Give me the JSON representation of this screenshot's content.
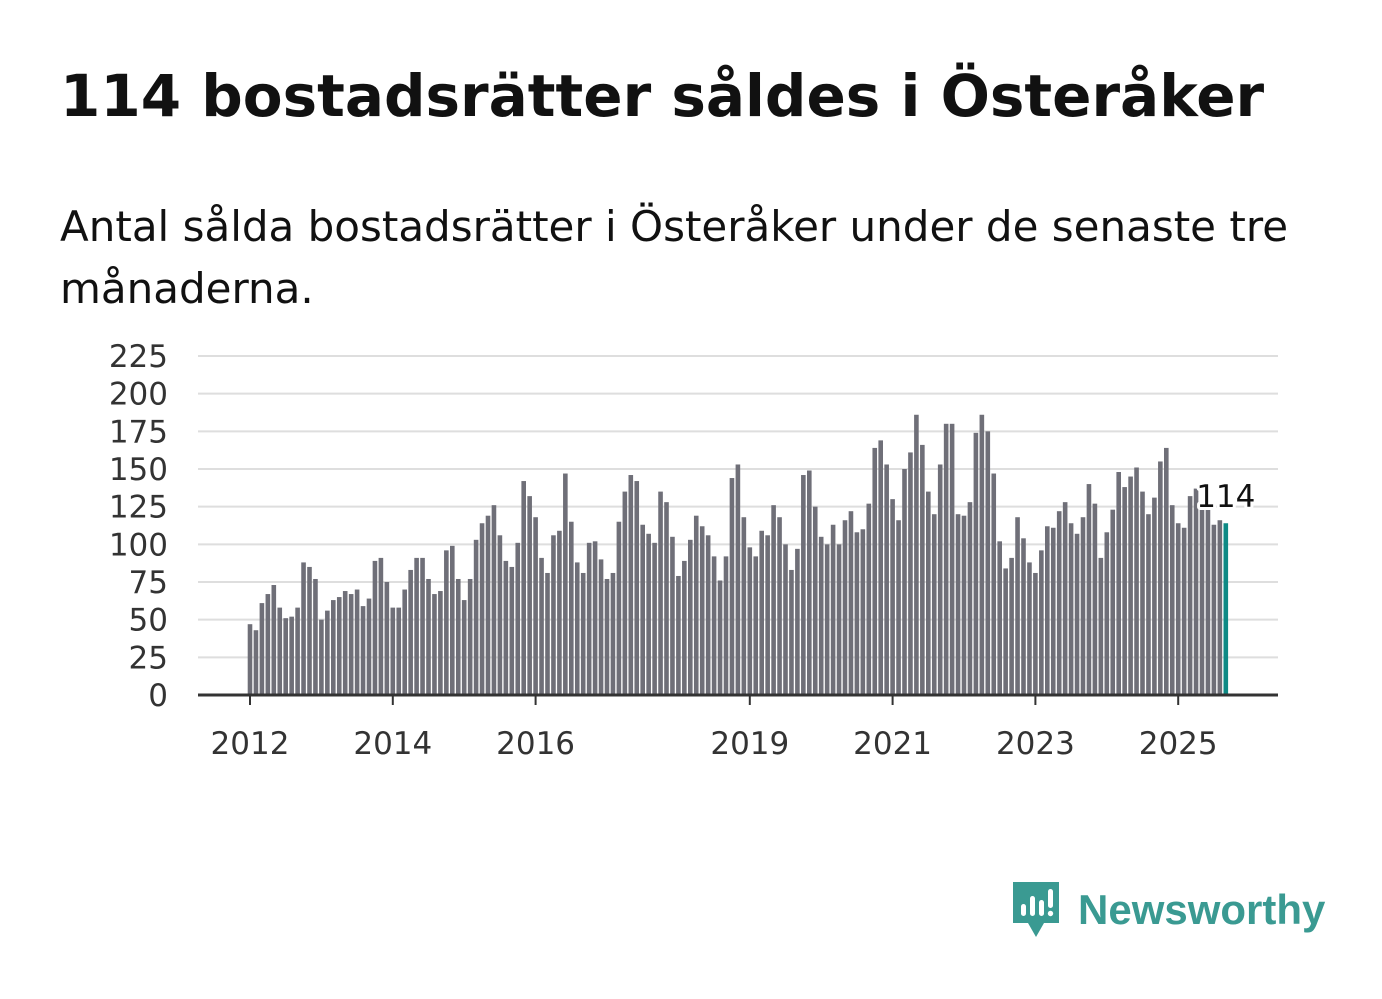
{
  "title": "114 bostadsrätter såldes i Österåker",
  "subtitle": "Antal sålda bostadsrätter i Österåker under de senaste tre månaderna.",
  "brand": {
    "name": "Newsworthy",
    "icon": "newsworthy-logo-icon",
    "color": "#3a9a92"
  },
  "colors": {
    "bar": "#6f6f78",
    "highlight": "#0e8a85",
    "grid": "#dedede"
  },
  "chart_data": {
    "type": "bar",
    "title": "",
    "xlabel": "",
    "ylabel": "",
    "ylim": [
      0,
      225
    ],
    "yticks": [
      0,
      25,
      50,
      75,
      100,
      125,
      150,
      175,
      200,
      225
    ],
    "start": "2012-01",
    "xticks": [
      {
        "label": "2012",
        "index": 0
      },
      {
        "label": "2014",
        "index": 24
      },
      {
        "label": "2016",
        "index": 48
      },
      {
        "label": "2019",
        "index": 84
      },
      {
        "label": "2021",
        "index": 108
      },
      {
        "label": "2023",
        "index": 132
      },
      {
        "label": "2025",
        "index": 156
      }
    ],
    "highlight_label": "114",
    "values": [
      47,
      43,
      61,
      67,
      73,
      58,
      51,
      52,
      58,
      88,
      85,
      77,
      50,
      56,
      63,
      65,
      69,
      67,
      70,
      59,
      64,
      89,
      91,
      75,
      58,
      58,
      70,
      83,
      91,
      91,
      77,
      67,
      69,
      96,
      99,
      77,
      63,
      77,
      103,
      114,
      119,
      126,
      106,
      89,
      85,
      101,
      142,
      132,
      118,
      91,
      81,
      106,
      109,
      147,
      115,
      88,
      81,
      101,
      102,
      90,
      77,
      81,
      115,
      135,
      146,
      142,
      113,
      107,
      101,
      135,
      128,
      105,
      79,
      89,
      103,
      119,
      112,
      106,
      92,
      76,
      92,
      144,
      153,
      118,
      98,
      92,
      109,
      106,
      126,
      118,
      100,
      83,
      97,
      146,
      149,
      125,
      105,
      100,
      113,
      100,
      116,
      122,
      108,
      110,
      127,
      164,
      169,
      153,
      130,
      116,
      150,
      161,
      186,
      166,
      135,
      120,
      153,
      180,
      180,
      120,
      119,
      128,
      174,
      186,
      175,
      147,
      102,
      84,
      91,
      118,
      104,
      88,
      81,
      96,
      112,
      111,
      122,
      128,
      114,
      107,
      118,
      140,
      127,
      91,
      108,
      123,
      148,
      138,
      145,
      151,
      135,
      120,
      131,
      155,
      164,
      126,
      114,
      111,
      132,
      137,
      126,
      127,
      113,
      116,
      114
    ]
  }
}
